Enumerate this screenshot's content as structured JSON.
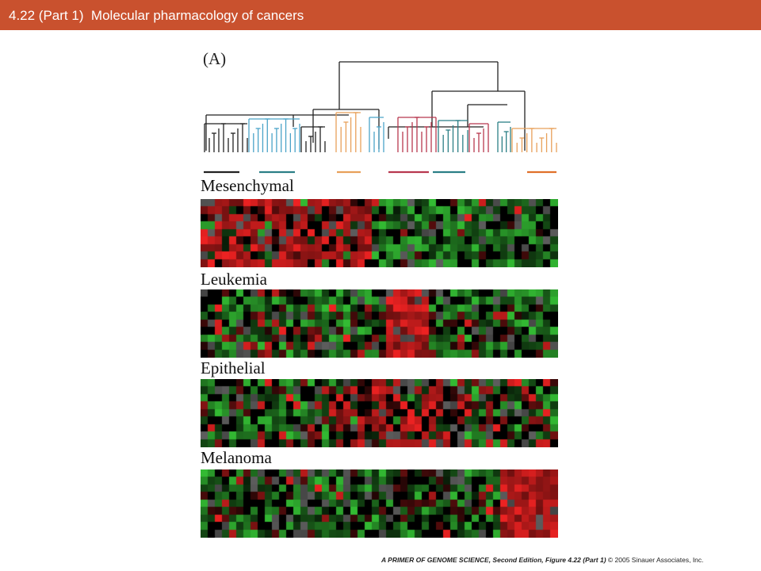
{
  "slide": {
    "title": "4.22 (Part 1)  Molecular pharmacology of cancers"
  },
  "figure": {
    "panel_label": "(A)",
    "heatmaps": [
      {
        "label": "Mesenchymal"
      },
      {
        "label": "Leukemia"
      },
      {
        "label": "Epithelial"
      },
      {
        "label": "Melanoma"
      }
    ],
    "colors": {
      "dendro_black": "#222222",
      "dendro_blue": "#4aa3c8",
      "dendro_orange": "#e8a05a",
      "dendro_red": "#b8384f",
      "dendro_teal": "#2b7f86",
      "dendro_darkorange": "#e0702a",
      "heat_red": "#ee2222",
      "heat_green": "#33bb33",
      "heat_black": "#000000",
      "heat_gray": "#555555"
    }
  },
  "footer": {
    "book_title": "A PRIMER OF GENOME SCIENCE, Second Edition, Figure 4.22 (Part 1)",
    "copyright": "© 2005 Sinauer Associates, Inc."
  }
}
